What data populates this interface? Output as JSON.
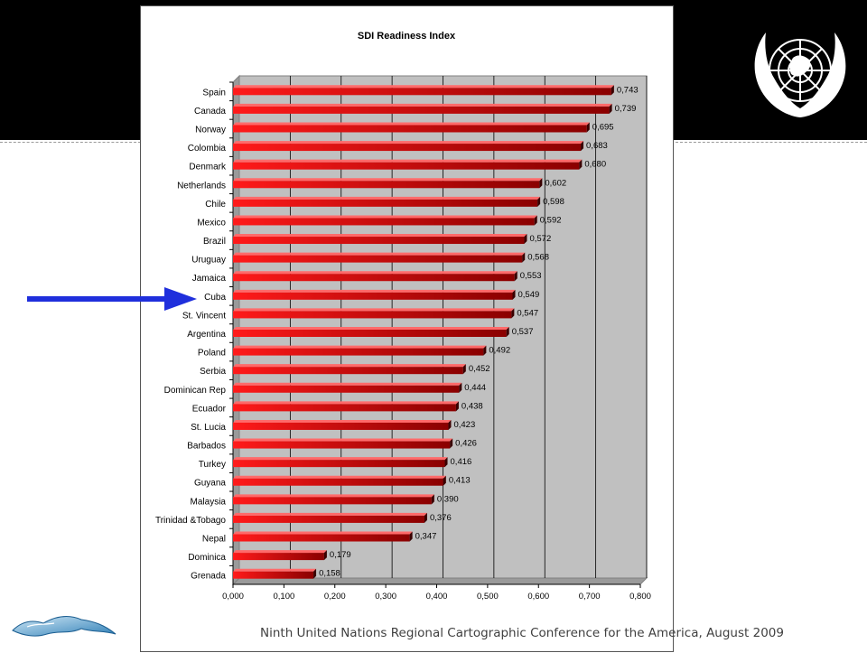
{
  "slide": {
    "footer": "Ninth United Nations Regional Cartographic Conference for the America, August 2009",
    "emblem_icon": "un-emblem-icon",
    "logo_icon": "island-map-logo-icon",
    "pointer_icon": "arrow-right-icon",
    "pointer_target": "Cuba",
    "colors": {
      "band": "#000000",
      "arrow": "#1f2fdc",
      "bar": "#e00000",
      "plot_bg": "#c0c0c0"
    }
  },
  "chart_data": {
    "type": "bar",
    "orientation": "horizontal",
    "title": "SDI Readiness Index",
    "xlabel": "",
    "ylabel": "",
    "xlim": [
      0,
      0.8
    ],
    "x_ticks": [
      "0,000",
      "0,100",
      "0,200",
      "0,300",
      "0,400",
      "0,500",
      "0,600",
      "0,700",
      "0,800"
    ],
    "grid": true,
    "legend": "none",
    "categories": [
      "Spain",
      "Canada",
      "Norway",
      "Colombia",
      "Denmark",
      "Netherlands",
      "Chile",
      "Mexico",
      "Brazil",
      "Uruguay",
      "Jamaica",
      "Cuba",
      "St. Vincent",
      "Argentina",
      "Poland",
      "Serbia",
      "Dominican Rep",
      "Ecuador",
      "St. Lucia",
      "Barbados",
      "Turkey",
      "Guyana",
      "Malaysia",
      "Trinidad &Tobago",
      "Nepal",
      "Dominica",
      "Grenada"
    ],
    "values": [
      0.743,
      0.739,
      0.695,
      0.683,
      0.68,
      0.602,
      0.598,
      0.592,
      0.572,
      0.568,
      0.553,
      0.549,
      0.547,
      0.537,
      0.492,
      0.452,
      0.444,
      0.438,
      0.423,
      0.426,
      0.416,
      0.413,
      0.39,
      0.376,
      0.347,
      0.179,
      0.158
    ],
    "value_labels": [
      "0,743",
      "0,739",
      "0,695",
      "0,683",
      "0,680",
      "0,602",
      "0,598",
      "0,592",
      "0,572",
      "0,568",
      "0,553",
      "0,549",
      "0,547",
      "0,537",
      "0,492",
      "0,452",
      "0,444",
      "0,438",
      "0,423",
      "0,426",
      "0,416",
      "0,413",
      "0,390",
      "0,376",
      "0,347",
      "0,179",
      "0,158"
    ]
  }
}
